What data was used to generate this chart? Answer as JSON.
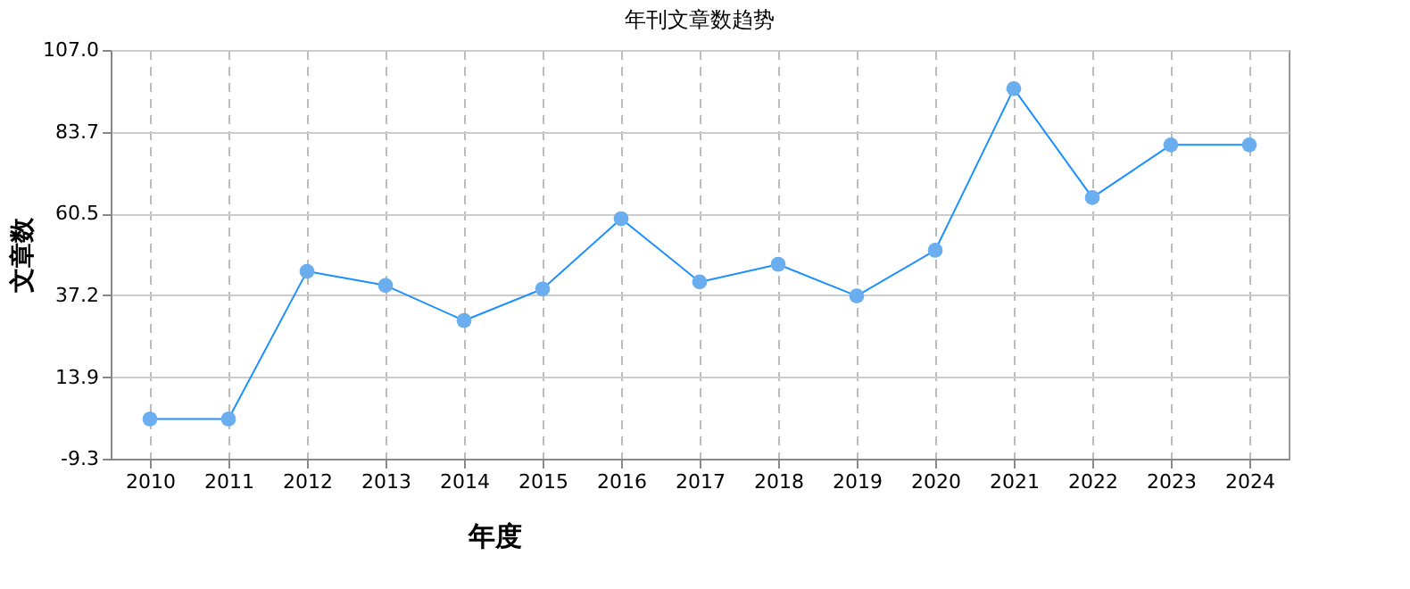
{
  "chart_data": {
    "type": "line",
    "title": "年刊文章数趋势",
    "xlabel": "年度",
    "ylabel": "文章数",
    "categories": [
      "2010",
      "2011",
      "2012",
      "2013",
      "2014",
      "2015",
      "2016",
      "2017",
      "2018",
      "2019",
      "2020",
      "2021",
      "2022",
      "2023",
      "2024"
    ],
    "series": [
      {
        "color": "#1e90ff",
        "values": [
          2,
          2,
          44,
          40,
          30,
          39,
          59,
          41,
          46,
          37,
          50,
          96,
          65,
          80,
          80
        ]
      }
    ],
    "ylim": [
      -9.3,
      107.0
    ],
    "yticks": [
      {
        "value": -9.3,
        "label": "-9.3"
      },
      {
        "value": 13.9,
        "label": "13.9"
      },
      {
        "value": 37.2,
        "label": "37.2"
      },
      {
        "value": 60.5,
        "label": "60.5"
      },
      {
        "value": 83.7,
        "label": "83.7"
      },
      {
        "value": 107.0,
        "label": "107.0"
      }
    ],
    "grid": true,
    "marker": "circle",
    "line_style": "solid"
  }
}
